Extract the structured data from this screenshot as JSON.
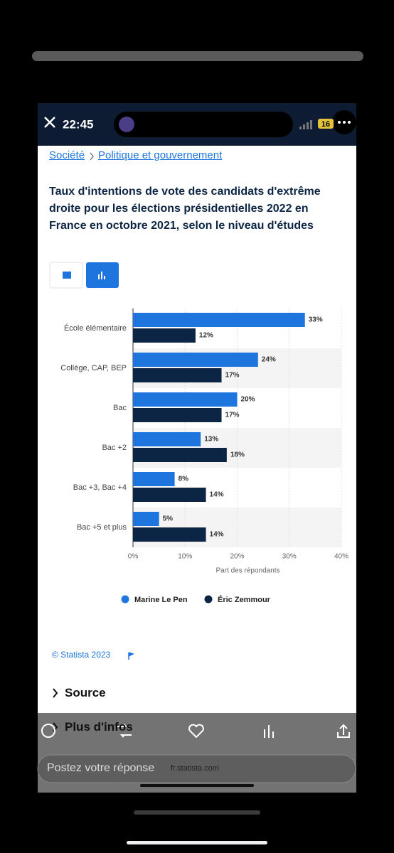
{
  "status_bar": {
    "time": "22:45",
    "battery": "16"
  },
  "breadcrumb": [
    "Société",
    "Politique et gouvernement"
  ],
  "chart_data": {
    "type": "hbar",
    "title": "Taux d'intentions de vote des candidats d'extrême droite pour les élections présidentielles 2022 en France en octobre 2021, selon le niveau d'études",
    "categories": [
      "École élémentaire",
      "Collège, CAP, BEP",
      "Bac",
      "Bac +2",
      "Bac +3, Bac +4",
      "Bac +5 et plus"
    ],
    "series": [
      {
        "name": "Marine Le Pen",
        "color": "#1f75de",
        "values": [
          33,
          24,
          20,
          13,
          8,
          5
        ],
        "value_labels": [
          "33%",
          "24%",
          "20%",
          "13%",
          "8%",
          "5%"
        ]
      },
      {
        "name": "Éric Zemmour",
        "color": "#0c2544",
        "values": [
          12,
          17,
          17,
          18,
          14,
          14
        ],
        "value_labels": [
          "12%",
          "17%",
          "17%",
          "18%",
          "14%",
          "14%"
        ]
      }
    ],
    "xlabel": "Part des répondants",
    "xlim": [
      0,
      40
    ],
    "xticks": [
      {
        "value": 0,
        "label": "0%"
      },
      {
        "value": 10,
        "label": "10%"
      },
      {
        "value": 20,
        "label": "20%"
      },
      {
        "value": 30,
        "label": "30%"
      },
      {
        "value": 40,
        "label": "40%"
      }
    ],
    "grid": true,
    "legend": "bottom"
  },
  "footer": {
    "copyright": "© Statista 2023",
    "source": "Source",
    "more": "Plus d'infos",
    "reply_placeholder": "Postez votre réponse",
    "domain": "fr.statista.com"
  }
}
